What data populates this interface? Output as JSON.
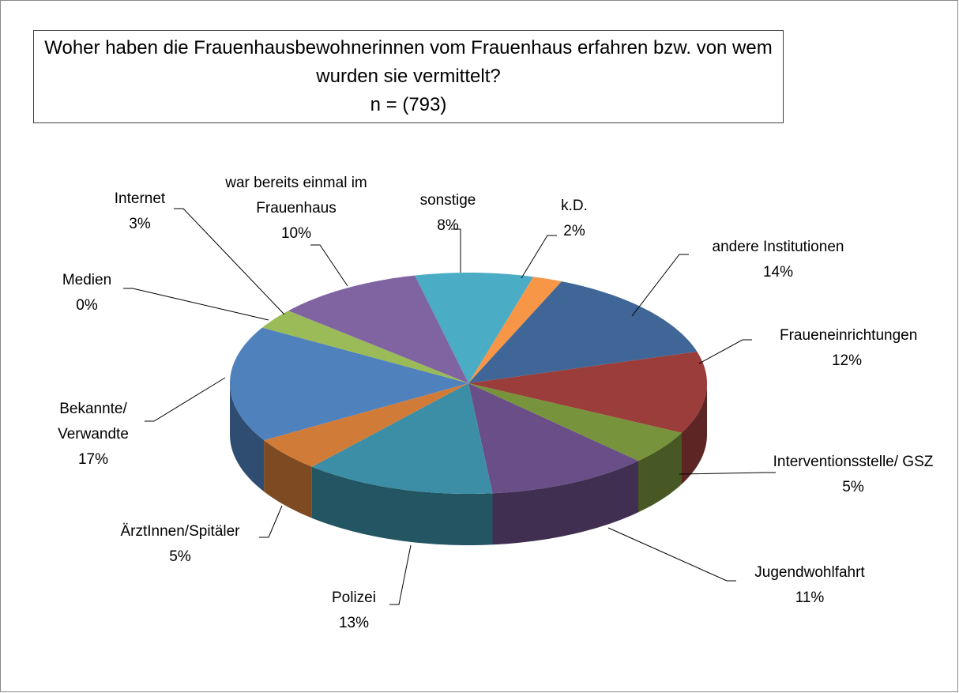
{
  "chart_data": {
    "type": "pie3d",
    "title": "Woher haben die Frauenhausbewohnerinnen vom Frauenhaus erfahren bzw. von wem wurden sie vermittelt?",
    "subtitle": "n = (793)",
    "categories": [
      "sonstige",
      "k.D.",
      "andere Institutionen",
      "Fraueneinrichtungen",
      "Interventionsstelle/ GSZ",
      "Jugendwohlfahrt",
      "Polizei",
      "ÄrztInnen/Spitäler",
      "Bekannte/ Verwandte",
      "Medien",
      "Internet",
      "war bereits einmal im Frauenhaus"
    ],
    "values": [
      8,
      2,
      14,
      12,
      5,
      11,
      13,
      5,
      17,
      0,
      3,
      10
    ],
    "value_labels": [
      "8%",
      "2%",
      "14%",
      "12%",
      "5%",
      "11%",
      "13%",
      "5%",
      "17%",
      "0%",
      "3%",
      "10%"
    ],
    "colors": [
      "#4bacc6",
      "#f79646",
      "#3f6696",
      "#9b3d3b",
      "#77933c",
      "#6a4e87",
      "#3b8ea5",
      "#d17b39",
      "#4f81bd",
      "#c0504d",
      "#9bbb59",
      "#8064a2"
    ]
  }
}
